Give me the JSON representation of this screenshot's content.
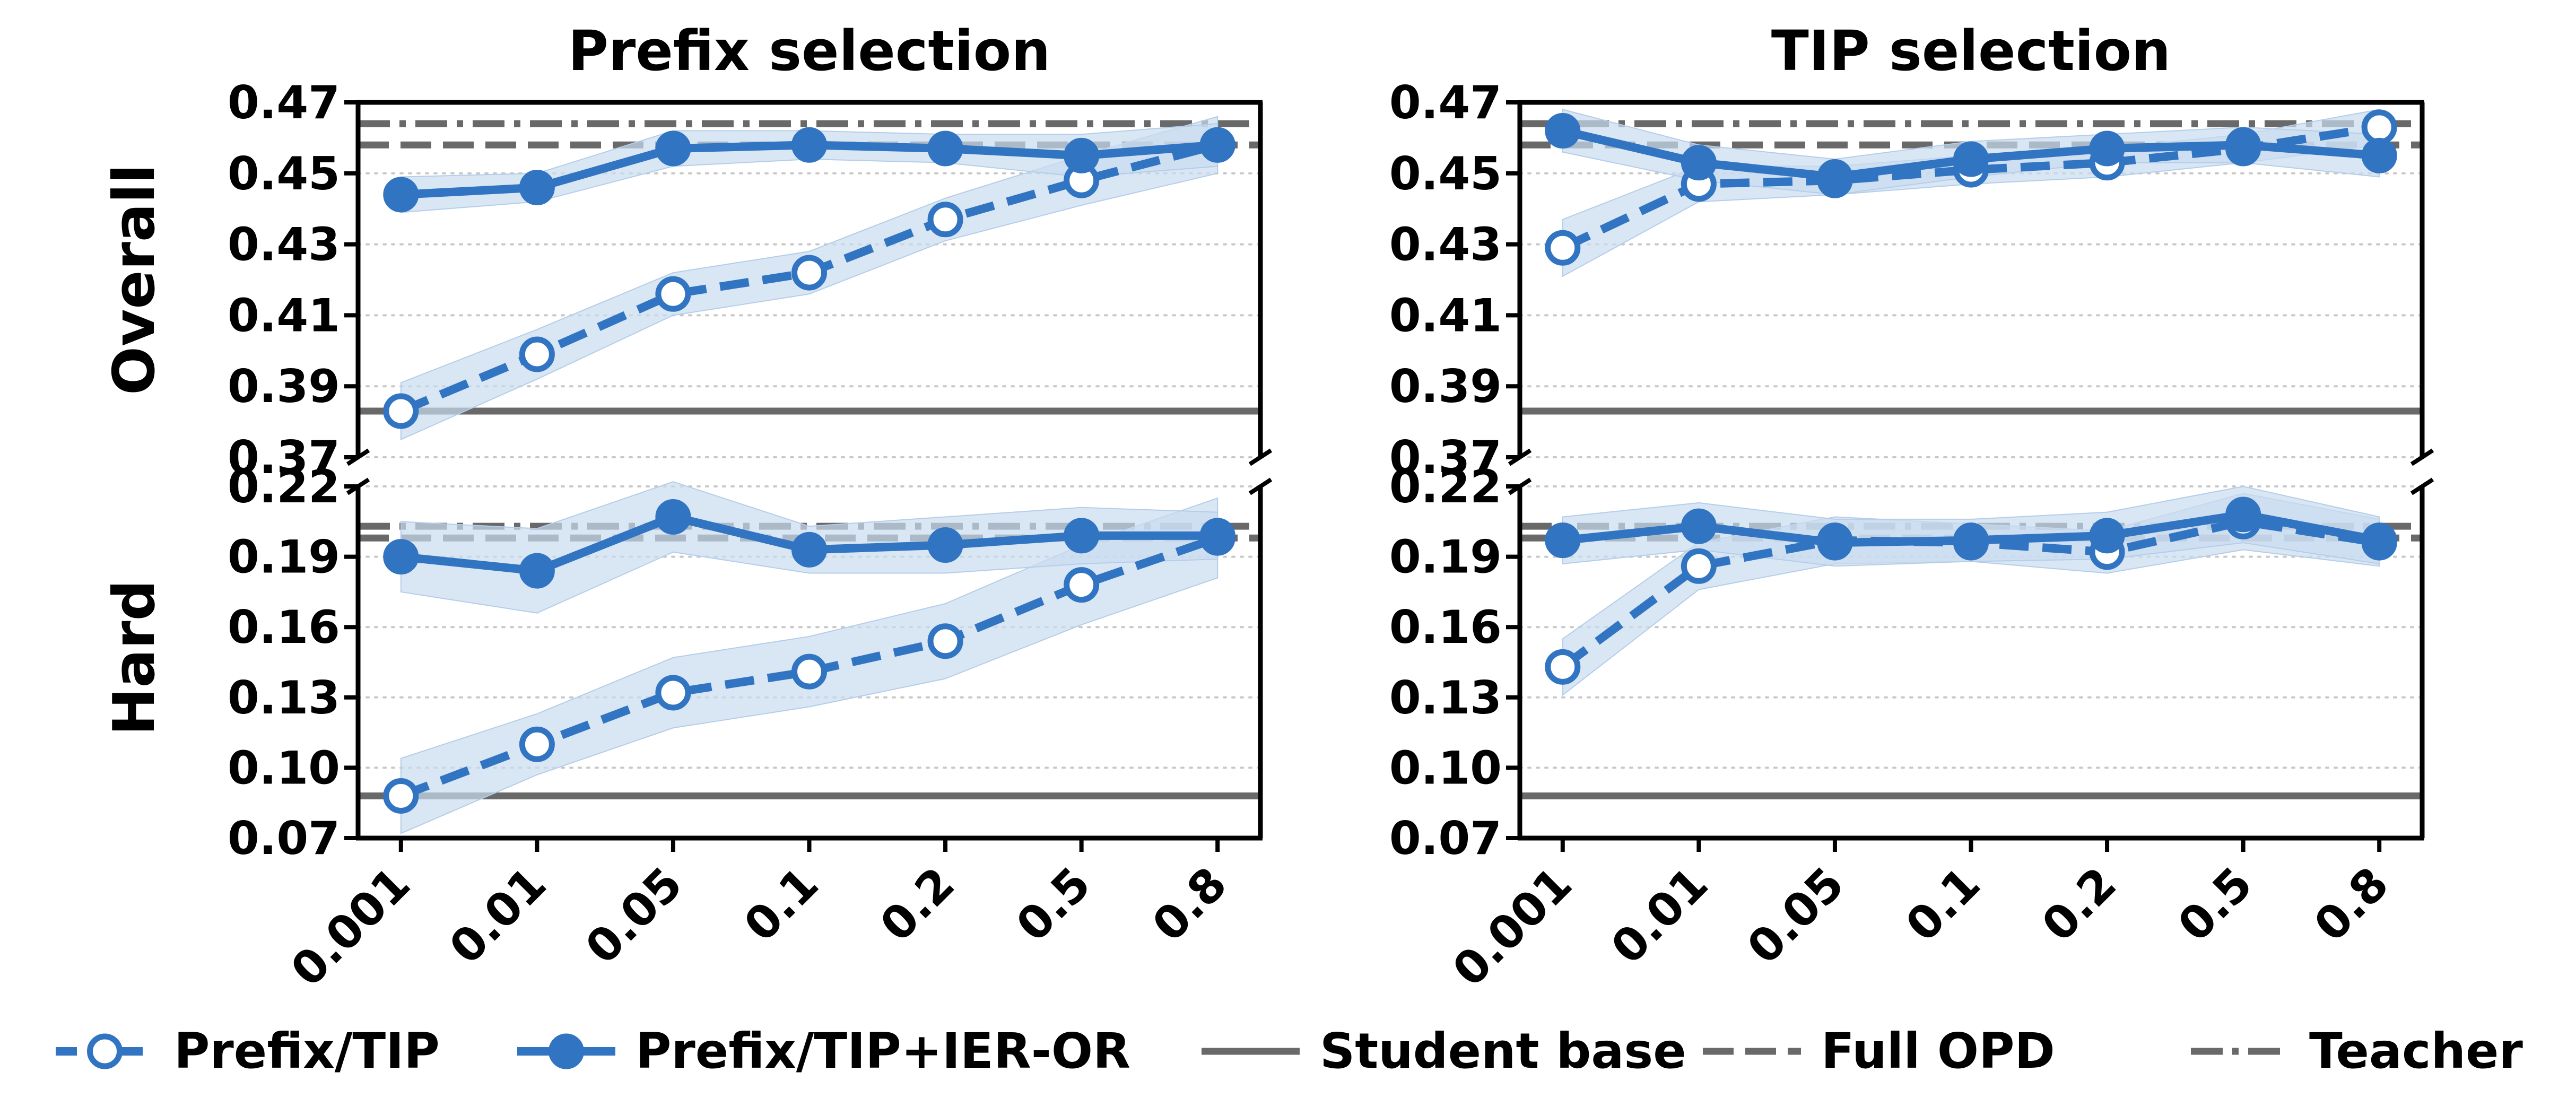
{
  "chart_data": {
    "type": "line",
    "columns": [
      "Prefix selection",
      "TIP selection"
    ],
    "rows": [
      "Overall",
      "Hard"
    ],
    "x_categories": [
      "0.001",
      "0.01",
      "0.05",
      "0.1",
      "0.2",
      "0.5",
      "0.8"
    ],
    "panels": [
      {
        "column": "Prefix selection",
        "row": "Overall",
        "ylim": [
          0.37,
          0.47
        ],
        "yticks": [
          "0.37",
          "0.39",
          "0.41",
          "0.43",
          "0.45",
          "0.47"
        ],
        "series": [
          {
            "name": "Prefix/TIP",
            "values": [
              0.383,
              0.399,
              0.416,
              0.422,
              0.437,
              0.448,
              0.458
            ],
            "band": [
              0.008,
              0.007,
              0.006,
              0.006,
              0.006,
              0.007,
              0.008
            ]
          },
          {
            "name": "Prefix/TIP+IER-OR",
            "values": [
              0.444,
              0.446,
              0.457,
              0.458,
              0.457,
              0.455,
              0.458
            ],
            "band": [
              0.005,
              0.004,
              0.005,
              0.004,
              0.004,
              0.006,
              0.006
            ]
          }
        ],
        "hlines": {
          "Student base": 0.383,
          "Full OPD": 0.458,
          "Teacher": 0.464
        }
      },
      {
        "column": "Prefix selection",
        "row": "Hard",
        "ylim": [
          0.07,
          0.22
        ],
        "yticks": [
          "0.07",
          "0.10",
          "0.13",
          "0.16",
          "0.19",
          "0.22"
        ],
        "series": [
          {
            "name": "Prefix/TIP",
            "values": [
              0.088,
              0.11,
              0.132,
              0.141,
              0.154,
              0.178,
              0.198
            ],
            "band": [
              0.016,
              0.013,
              0.015,
              0.015,
              0.016,
              0.017,
              0.017
            ]
          },
          {
            "name": "Prefix/TIP+IER-OR",
            "values": [
              0.19,
              0.184,
              0.207,
              0.193,
              0.195,
              0.199,
              0.199
            ],
            "band": [
              0.015,
              0.018,
              0.015,
              0.01,
              0.012,
              0.012,
              0.01
            ]
          }
        ],
        "hlines": {
          "Student base": 0.088,
          "Full OPD": 0.198,
          "Teacher": 0.203
        }
      },
      {
        "column": "TIP selection",
        "row": "Overall",
        "ylim": [
          0.37,
          0.47
        ],
        "yticks": [
          "0.37",
          "0.39",
          "0.41",
          "0.43",
          "0.45",
          "0.47"
        ],
        "series": [
          {
            "name": "Prefix/TIP",
            "values": [
              0.429,
              0.447,
              0.448,
              0.451,
              0.453,
              0.457,
              0.463
            ],
            "band": [
              0.008,
              0.005,
              0.004,
              0.004,
              0.004,
              0.004,
              0.005
            ]
          },
          {
            "name": "Prefix/TIP+IER-OR",
            "values": [
              0.462,
              0.453,
              0.449,
              0.454,
              0.457,
              0.458,
              0.455
            ],
            "band": [
              0.006,
              0.005,
              0.005,
              0.005,
              0.004,
              0.005,
              0.006
            ]
          }
        ],
        "hlines": {
          "Student base": 0.383,
          "Full OPD": 0.458,
          "Teacher": 0.464
        }
      },
      {
        "column": "TIP selection",
        "row": "Hard",
        "ylim": [
          0.07,
          0.22
        ],
        "yticks": [
          "0.07",
          "0.10",
          "0.13",
          "0.16",
          "0.19",
          "0.22"
        ],
        "series": [
          {
            "name": "Prefix/TIP",
            "values": [
              0.143,
              0.186,
              0.197,
              0.196,
              0.192,
              0.205,
              0.196
            ],
            "band": [
              0.012,
              0.01,
              0.01,
              0.008,
              0.009,
              0.012,
              0.01
            ]
          },
          {
            "name": "Prefix/TIP+IER-OR",
            "values": [
              0.197,
              0.203,
              0.196,
              0.197,
              0.199,
              0.208,
              0.197
            ],
            "band": [
              0.01,
              0.01,
              0.01,
              0.009,
              0.01,
              0.012,
              0.01
            ]
          }
        ],
        "hlines": {
          "Student base": 0.088,
          "Full OPD": 0.198,
          "Teacher": 0.203
        }
      }
    ],
    "legend": {
      "placement": "bottom",
      "items": [
        {
          "label": "Prefix/TIP",
          "style": "dashed-open-marker"
        },
        {
          "label": "Prefix/TIP+IER-OR",
          "style": "solid-filled-marker"
        },
        {
          "label": "Student base",
          "style": "solid-gray"
        },
        {
          "label": "Full OPD",
          "style": "dashed-gray"
        },
        {
          "label": "Teacher",
          "style": "dashdot-gray"
        }
      ]
    },
    "colors": {
      "series": "#3174c2",
      "band": "#c9dcf0",
      "reference": "#696969",
      "grid": "#c8c8c8"
    },
    "grid": "horizontal-dotted",
    "axis_break": true
  }
}
